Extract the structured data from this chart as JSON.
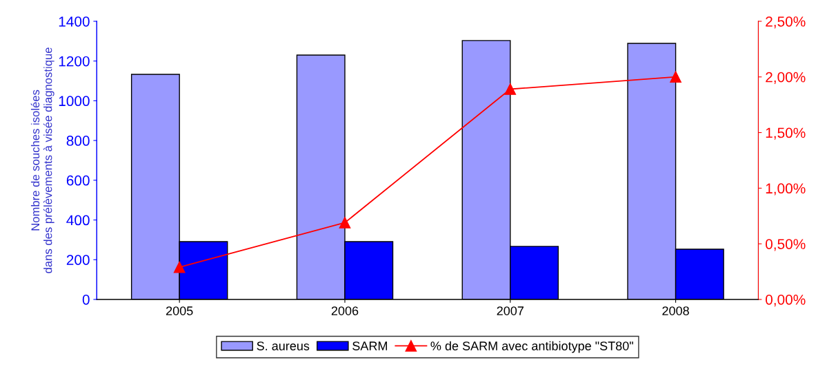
{
  "chart_data": {
    "type": "bar",
    "ylabel": "Nombre de souches isolées\ndans des prélèvements à visée diagnostique",
    "categories": [
      "2005",
      "2006",
      "2007",
      "2008"
    ],
    "series": [
      {
        "name": "S. aureus",
        "color": "#9999ff",
        "values": [
          1133,
          1230,
          1303,
          1289
        ]
      },
      {
        "name": "SARM",
        "color": "#0000ff",
        "values": [
          291,
          291,
          267,
          253
        ]
      },
      {
        "name": "% de SARM avec antibiotype \"ST80\"",
        "type": "line",
        "axis": "y2",
        "color": "#ff0000",
        "marker": "triangle",
        "values": [
          0.29,
          0.69,
          1.89,
          2.0
        ]
      }
    ],
    "ylim": [
      0,
      1400
    ],
    "yticks": [
      0,
      200,
      400,
      600,
      800,
      1000,
      1200,
      1400
    ],
    "y2lim": [
      0,
      2.5
    ],
    "y2ticks": [
      {
        "value": 0,
        "label": "0,00%"
      },
      {
        "value": 0.5,
        "label": "0,50%"
      },
      {
        "value": 1,
        "label": "1,00%"
      },
      {
        "value": 1.5,
        "label": "1,50%"
      },
      {
        "value": 2,
        "label": "2,00%"
      },
      {
        "value": 2.5,
        "label": "2,50%"
      }
    ],
    "grid": false,
    "legend": "bottom"
  }
}
